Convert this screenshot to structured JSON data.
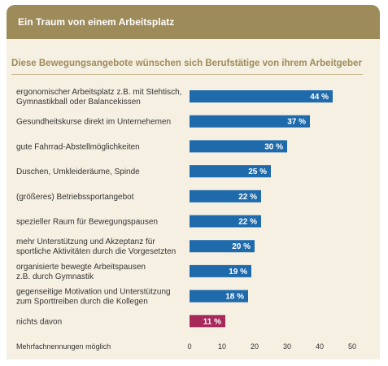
{
  "header": {
    "title": "Ein Traum von einem Arbeitsplatz"
  },
  "chart_data": {
    "type": "bar",
    "orientation": "horizontal",
    "title": "Diese Bewegungsangebote wünschen sich Berufstätige von ihrem Arbeitgeber",
    "categories": [
      [
        "ergonomischer Arbeitsplatz z.B. mit Stehtisch,",
        "Gymnastikball oder Balancekissen"
      ],
      [
        "Gesundheitskurse direkt im Unternehemen"
      ],
      [
        "gute Fahrrad-Abstellmöglichkeiten"
      ],
      [
        "Duschen, Umkleideräume, Spinde"
      ],
      [
        "(größeres) Betriebssportangebot"
      ],
      [
        "spezieller Raum für Bewegungspausen"
      ],
      [
        "mehr Unterstützung und Akzeptanz für",
        "sportliche Aktivitäten durch die Vorgesetzten"
      ],
      [
        "organisierte bewegte Arbeitspausen",
        "z.B. durch Gymnastik"
      ],
      [
        "gegenseitige Motivation und Unterstützung",
        "zum Sporttreiben durch die Kollegen"
      ],
      [
        "nichts davon"
      ]
    ],
    "values": [
      44,
      37,
      30,
      25,
      22,
      22,
      20,
      19,
      18,
      11
    ],
    "value_suffix": " %",
    "xlim": [
      0,
      50
    ],
    "xticks": [
      0,
      10,
      20,
      30,
      40,
      50
    ],
    "note": "Mehrfachnennungen möglich",
    "colors": {
      "bar": "#1f6aab",
      "highlight": "#a8285a",
      "highlight_index": 9
    },
    "grid": false
  }
}
